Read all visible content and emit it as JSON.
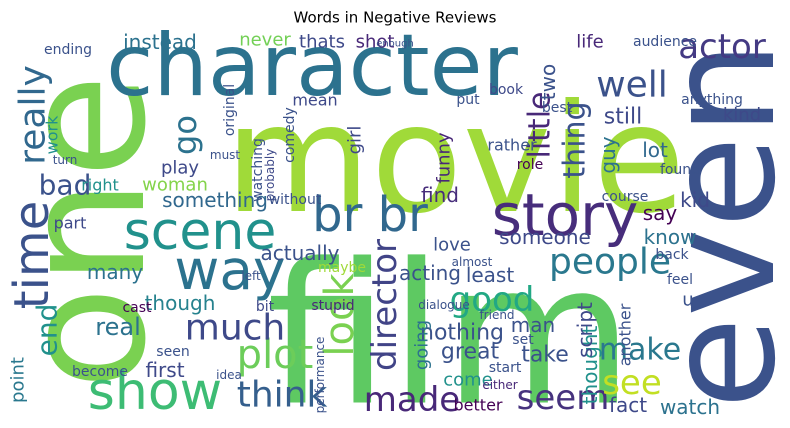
{
  "chart_data": {
    "type": "wordcloud",
    "title": "Words in Negative Reviews",
    "words": [
      {
        "text": "movie",
        "color": "#a0da39"
      },
      {
        "text": "film",
        "color": "#5ec962"
      },
      {
        "text": "one",
        "color": "#7ad151"
      },
      {
        "text": "even",
        "color": "#3b528b"
      },
      {
        "text": "character",
        "color": "#2c728e"
      },
      {
        "text": "story",
        "color": "#472d7b"
      },
      {
        "text": "scene",
        "color": "#21918c"
      },
      {
        "text": "br br",
        "color": "#31688e"
      },
      {
        "text": "way",
        "color": "#2c728e"
      },
      {
        "text": "time",
        "color": "#3b528b"
      },
      {
        "text": "show",
        "color": "#3dbc74"
      },
      {
        "text": "think",
        "color": "#355f8d"
      },
      {
        "text": "plot",
        "color": "#6ccd5a"
      },
      {
        "text": "much",
        "color": "#3e4989"
      },
      {
        "text": "people",
        "color": "#2a788e"
      },
      {
        "text": "good",
        "color": "#22a884"
      },
      {
        "text": "seem",
        "color": "#46327e"
      },
      {
        "text": "made",
        "color": "#482878"
      },
      {
        "text": "make",
        "color": "#2a788e"
      },
      {
        "text": "see",
        "color": "#c2df23"
      },
      {
        "text": "well",
        "color": "#3b528b"
      },
      {
        "text": "actor",
        "color": "#443a83"
      },
      {
        "text": "look",
        "color": "#7ad151"
      },
      {
        "text": "director",
        "color": "#414487"
      },
      {
        "text": "really",
        "color": "#31688e"
      },
      {
        "text": "bad",
        "color": "#3b528b"
      },
      {
        "text": "end",
        "color": "#21918c"
      },
      {
        "text": "go",
        "color": "#2c728e"
      },
      {
        "text": "little",
        "color": "#482878"
      },
      {
        "text": "thing",
        "color": "#3b528b"
      },
      {
        "text": "still",
        "color": "#3e4989"
      },
      {
        "text": "kind",
        "color": "#3e4989"
      },
      {
        "text": "two",
        "color": "#3b528b"
      },
      {
        "text": "life",
        "color": "#482878"
      },
      {
        "text": "instead",
        "color": "#2c728e"
      },
      {
        "text": "never",
        "color": "#73d056"
      },
      {
        "text": "thats",
        "color": "#3e4989"
      },
      {
        "text": "shot",
        "color": "#482878"
      },
      {
        "text": "something",
        "color": "#31688e"
      },
      {
        "text": "play",
        "color": "#3e4989"
      },
      {
        "text": "woman",
        "color": "#84d44b"
      },
      {
        "text": "right",
        "color": "#21918c"
      },
      {
        "text": "part",
        "color": "#3e4989"
      },
      {
        "text": "work",
        "color": "#21918c"
      },
      {
        "text": "actually",
        "color": "#3b528b"
      },
      {
        "text": "many",
        "color": "#2c728e"
      },
      {
        "text": "real",
        "color": "#2c728e"
      },
      {
        "text": "though",
        "color": "#26828e"
      },
      {
        "text": "first",
        "color": "#3e4989"
      },
      {
        "text": "seen",
        "color": "#3b528b"
      },
      {
        "text": "cast",
        "color": "#440154"
      },
      {
        "text": "point",
        "color": "#2a788e"
      },
      {
        "text": "become",
        "color": "#3b528b"
      },
      {
        "text": "maybe",
        "color": "#a0da39"
      },
      {
        "text": "stupid",
        "color": "#482878"
      },
      {
        "text": "bit",
        "color": "#3e4989"
      },
      {
        "text": "acting",
        "color": "#3b528b"
      },
      {
        "text": "love",
        "color": "#3b528b"
      },
      {
        "text": "find",
        "color": "#472d7b"
      },
      {
        "text": "nothing",
        "color": "#3b528b"
      },
      {
        "text": "great",
        "color": "#3b528b"
      },
      {
        "text": "least",
        "color": "#3b528b"
      },
      {
        "text": "going",
        "color": "#2c728e"
      },
      {
        "text": "someone",
        "color": "#3e4989"
      },
      {
        "text": "take",
        "color": "#3b528b"
      },
      {
        "text": "man",
        "color": "#3b528b"
      },
      {
        "text": "thought",
        "color": "#21918c"
      },
      {
        "text": "fact",
        "color": "#3e4989"
      },
      {
        "text": "watch",
        "color": "#2c728e"
      },
      {
        "text": "script",
        "color": "#3e4989"
      },
      {
        "text": "another",
        "color": "#3b528b"
      },
      {
        "text": "know",
        "color": "#2c728e"
      },
      {
        "text": "say",
        "color": "#440154"
      },
      {
        "text": "kid",
        "color": "#3e4989"
      },
      {
        "text": "guy",
        "color": "#2c728e"
      },
      {
        "text": "lot",
        "color": "#31688e"
      },
      {
        "text": "funny",
        "color": "#482878"
      },
      {
        "text": "girl",
        "color": "#3e4989"
      },
      {
        "text": "comedy",
        "color": "#3b528b"
      },
      {
        "text": "original",
        "color": "#3b528b"
      },
      {
        "text": "mean",
        "color": "#3e4989"
      },
      {
        "text": "book",
        "color": "#3e4989"
      },
      {
        "text": "put",
        "color": "#3b528b"
      },
      {
        "text": "role",
        "color": "#440154"
      },
      {
        "text": "course",
        "color": "#3b528b"
      },
      {
        "text": "found",
        "color": "#3b528b"
      },
      {
        "text": "rather",
        "color": "#3b528b"
      },
      {
        "text": "better",
        "color": "#440154"
      },
      {
        "text": "come",
        "color": "#21918c"
      },
      {
        "text": "start",
        "color": "#3b528b"
      },
      {
        "text": "either",
        "color": "#482878"
      },
      {
        "text": "friend",
        "color": "#3b528b"
      },
      {
        "text": "feel",
        "color": "#3b528b"
      },
      {
        "text": "back",
        "color": "#3b528b"
      },
      {
        "text": "u",
        "color": "#3b528b"
      },
      {
        "text": "audience",
        "color": "#3b528b"
      },
      {
        "text": "anything",
        "color": "#3b528b"
      },
      {
        "text": "performance",
        "color": "#3b528b"
      },
      {
        "text": "watching",
        "color": "#3b528b"
      },
      {
        "text": "probably",
        "color": "#3e4989"
      },
      {
        "text": "without",
        "color": "#3b528b"
      },
      {
        "text": "ending",
        "color": "#3b528b"
      },
      {
        "text": "must",
        "color": "#3b528b"
      },
      {
        "text": "turn",
        "color": "#3b528b"
      },
      {
        "text": "idea",
        "color": "#3b528b"
      },
      {
        "text": "left",
        "color": "#3b528b"
      },
      {
        "text": "dialogue",
        "color": "#3b528b"
      },
      {
        "text": "almost",
        "color": "#3b528b"
      },
      {
        "text": "best",
        "color": "#3b528b"
      },
      {
        "text": "set",
        "color": "#3b528b"
      },
      {
        "text": "enough",
        "color": "#3b528b"
      }
    ]
  }
}
